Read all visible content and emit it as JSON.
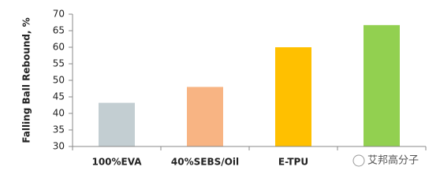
{
  "chart_data": {
    "type": "bar",
    "y_label": "Falling Ball Rebound, %",
    "categories": [
      "100%EVA",
      "40%SEBS/Oil",
      "E-TPU",
      null
    ],
    "values": [
      43.2,
      48,
      60,
      66.7
    ],
    "colors": [
      "#c3ced2",
      "#f8b483",
      "#ffc000",
      "#92d050"
    ],
    "ylim": [
      30,
      70
    ],
    "yticks": [
      30,
      35,
      40,
      45,
      50,
      55,
      60,
      65,
      70
    ],
    "grid": false,
    "annotation": "艾邦高分子"
  }
}
